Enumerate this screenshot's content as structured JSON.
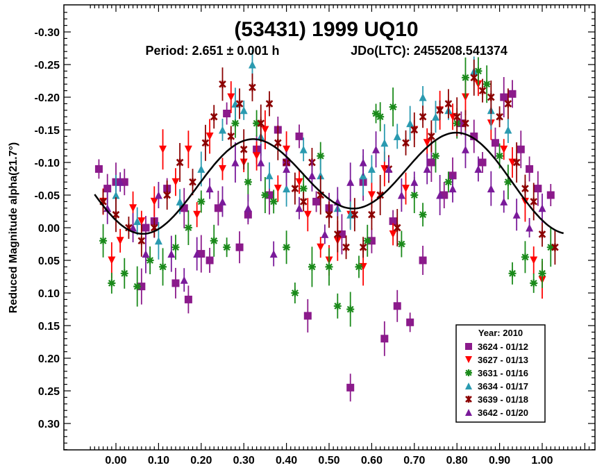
{
  "chart_data": {
    "type": "scatter",
    "title": "(53431) 1999 UQ10",
    "subtitle_period": "Period: 2.651 ± 0.001 h",
    "subtitle_epoch": "JDo(LTC): 2455208.541374",
    "xlabel": "",
    "ylabel": "Reduced Magnitude alpha(21.7°)",
    "xlim": [
      -0.06,
      1.12
    ],
    "ylim": [
      -0.33,
      0.34
    ],
    "y_inverted": true,
    "grid": false,
    "x_ticks": [
      "0.00",
      "0.10",
      "0.20",
      "0.30",
      "0.40",
      "0.50",
      "0.60",
      "0.70",
      "0.80",
      "0.90",
      "1.00"
    ],
    "y_ticks": [
      "-0.30",
      "-0.25",
      "-0.20",
      "-0.15",
      "-0.10",
      "-0.05",
      "0.00",
      "0.05",
      "0.10",
      "0.15",
      "0.20",
      "0.25",
      "0.30"
    ],
    "legend": {
      "title": "Year: 2010",
      "position": "bottom-right"
    },
    "series": [
      {
        "name": "3624 - 01/12",
        "marker": "square",
        "color": "#8B1A8B",
        "points": [
          [
            -0.04,
            -0.09
          ],
          [
            -0.02,
            -0.06
          ],
          [
            0.0,
            -0.07
          ],
          [
            0.02,
            -0.07
          ],
          [
            0.06,
            0.09
          ],
          [
            0.07,
            0.0
          ],
          [
            0.09,
            -0.01
          ],
          [
            0.12,
            -0.06
          ],
          [
            0.14,
            0.085
          ],
          [
            0.16,
            -0.03
          ],
          [
            0.17,
            0.11
          ],
          [
            0.2,
            0.04
          ],
          [
            0.22,
            0.05
          ],
          [
            0.24,
            -0.03
          ],
          [
            0.26,
            -0.175
          ],
          [
            0.29,
            0.03
          ],
          [
            0.31,
            -0.02
          ],
          [
            0.33,
            -0.12
          ],
          [
            0.36,
            -0.05
          ],
          [
            0.38,
            -0.15
          ],
          [
            0.4,
            -0.1
          ],
          [
            0.43,
            -0.14
          ],
          [
            0.45,
            0.135
          ],
          [
            0.47,
            -0.04
          ],
          [
            0.5,
            -0.03
          ],
          [
            0.53,
            0.01
          ],
          [
            0.55,
            0.245
          ],
          [
            0.58,
            -0.07
          ],
          [
            0.6,
            0.02
          ],
          [
            0.63,
            0.17
          ],
          [
            0.65,
            -0.01
          ],
          [
            0.66,
            0.12
          ],
          [
            0.69,
            0.145
          ],
          [
            0.72,
            0.05
          ],
          [
            0.74,
            -0.1
          ],
          [
            0.77,
            -0.05
          ],
          [
            0.79,
            -0.08
          ],
          [
            0.81,
            -0.16
          ],
          [
            0.84,
            -0.14
          ],
          [
            0.86,
            -0.1
          ],
          [
            0.89,
            -0.13
          ],
          [
            0.91,
            -0.2
          ],
          [
            0.93,
            -0.205
          ],
          [
            0.95,
            -0.12
          ],
          [
            0.97,
            -0.09
          ],
          [
            0.99,
            -0.06
          ],
          [
            1.02,
            -0.05
          ]
        ]
      },
      {
        "name": "3627 - 01/13",
        "marker": "triangle-down",
        "color": "#FF0000",
        "points": [
          [
            -0.03,
            -0.04
          ],
          [
            -0.01,
            0.05
          ],
          [
            0.01,
            0.02
          ],
          [
            0.04,
            -0.03
          ],
          [
            0.06,
            -0.01
          ],
          [
            0.09,
            -0.04
          ],
          [
            0.11,
            -0.12
          ],
          [
            0.14,
            -0.07
          ],
          [
            0.17,
            -0.12
          ],
          [
            0.19,
            -0.02
          ],
          [
            0.22,
            -0.14
          ],
          [
            0.25,
            -0.09
          ],
          [
            0.27,
            -0.2
          ],
          [
            0.3,
            -0.1
          ],
          [
            0.33,
            -0.11
          ],
          [
            0.35,
            -0.15
          ],
          [
            0.38,
            -0.06
          ],
          [
            0.4,
            -0.12
          ],
          [
            0.43,
            -0.07
          ],
          [
            0.45,
            -0.02
          ],
          [
            0.48,
            0.03
          ],
          [
            0.5,
            0.05
          ],
          [
            0.52,
            0.02
          ],
          [
            0.55,
            -0.02
          ],
          [
            0.58,
            0.06
          ],
          [
            0.6,
            -0.05
          ],
          [
            0.63,
            -0.09
          ],
          [
            0.65,
            0.01
          ],
          [
            0.68,
            -0.06
          ],
          [
            0.7,
            -0.15
          ],
          [
            0.73,
            -0.13
          ],
          [
            0.76,
            -0.18
          ],
          [
            0.79,
            -0.17
          ],
          [
            0.82,
            -0.2
          ],
          [
            0.85,
            -0.22
          ],
          [
            0.88,
            -0.16
          ],
          [
            0.91,
            -0.12
          ],
          [
            0.93,
            -0.1
          ],
          [
            0.96,
            -0.04
          ],
          [
            0.98,
            0.05
          ],
          [
            1.0,
            0.08
          ]
        ]
      },
      {
        "name": "3631 - 01/16",
        "marker": "asterisk",
        "color": "#1A8A1A",
        "points": [
          [
            -0.03,
            0.02
          ],
          [
            -0.01,
            0.085
          ],
          [
            0.02,
            0.07
          ],
          [
            0.05,
            0.09
          ],
          [
            0.08,
            0.05
          ],
          [
            0.11,
            0.06
          ],
          [
            0.14,
            0.03
          ],
          [
            0.17,
            0.0
          ],
          [
            0.2,
            -0.04
          ],
          [
            0.23,
            0.02
          ],
          [
            0.26,
            0.03
          ],
          [
            0.28,
            -0.16
          ],
          [
            0.31,
            -0.07
          ],
          [
            0.33,
            -0.16
          ],
          [
            0.35,
            -0.05
          ],
          [
            0.37,
            -0.04
          ],
          [
            0.4,
            0.03
          ],
          [
            0.42,
            0.1
          ],
          [
            0.44,
            -0.06
          ],
          [
            0.46,
            0.06
          ],
          [
            0.48,
            -0.11
          ],
          [
            0.5,
            0.06
          ],
          [
            0.52,
            0.12
          ],
          [
            0.55,
            0.125
          ],
          [
            0.57,
            0.06
          ],
          [
            0.59,
            0.02
          ],
          [
            0.61,
            -0.175
          ],
          [
            0.62,
            -0.17
          ],
          [
            0.65,
            -0.185
          ],
          [
            0.67,
            0.025
          ],
          [
            0.7,
            -0.05
          ],
          [
            0.72,
            -0.02
          ],
          [
            0.75,
            -0.11
          ],
          [
            0.78,
            -0.07
          ],
          [
            0.8,
            -0.16
          ],
          [
            0.82,
            -0.23
          ],
          [
            0.85,
            -0.24
          ],
          [
            0.87,
            -0.22
          ],
          [
            0.9,
            -0.11
          ],
          [
            0.92,
            -0.07
          ],
          [
            0.93,
            0.07
          ],
          [
            0.96,
            0.045
          ],
          [
            0.98,
            0.085
          ],
          [
            1.0,
            0.07
          ],
          [
            1.02,
            0.03
          ]
        ]
      },
      {
        "name": "3634 - 01/17",
        "marker": "triangle-up",
        "color": "#2A9AB0",
        "points": [
          [
            0.0,
            -0.05
          ],
          [
            0.05,
            -0.01
          ],
          [
            0.1,
            0.02
          ],
          [
            0.15,
            -0.04
          ],
          [
            0.2,
            -0.09
          ],
          [
            0.25,
            -0.15
          ],
          [
            0.28,
            -0.19
          ],
          [
            0.3,
            -0.18
          ],
          [
            0.32,
            -0.25
          ],
          [
            0.34,
            -0.14
          ],
          [
            0.36,
            -0.08
          ],
          [
            0.4,
            -0.06
          ],
          [
            0.44,
            -0.12
          ],
          [
            0.48,
            -0.08
          ],
          [
            0.52,
            -0.03
          ],
          [
            0.55,
            -0.02
          ],
          [
            0.58,
            -0.08
          ],
          [
            0.6,
            -0.09
          ],
          [
            0.63,
            -0.13
          ],
          [
            0.66,
            -0.14
          ],
          [
            0.69,
            -0.16
          ],
          [
            0.72,
            -0.2
          ],
          [
            0.75,
            -0.17
          ],
          [
            0.78,
            -0.18
          ],
          [
            0.84,
            -0.24
          ],
          [
            0.88,
            -0.18
          ],
          [
            0.92,
            -0.15
          ]
        ]
      },
      {
        "name": "3639 - 01/18",
        "marker": "star",
        "color": "#8B0000",
        "points": [
          [
            -0.03,
            -0.04
          ],
          [
            0.0,
            -0.02
          ],
          [
            0.03,
            0.0
          ],
          [
            0.06,
            0.02
          ],
          [
            0.09,
            0.0
          ],
          [
            0.12,
            -0.05
          ],
          [
            0.15,
            -0.1
          ],
          [
            0.18,
            -0.07
          ],
          [
            0.21,
            -0.13
          ],
          [
            0.23,
            -0.17
          ],
          [
            0.25,
            -0.22
          ],
          [
            0.27,
            -0.14
          ],
          [
            0.29,
            -0.19
          ],
          [
            0.3,
            -0.12
          ],
          [
            0.32,
            -0.215
          ],
          [
            0.34,
            -0.16
          ],
          [
            0.36,
            -0.19
          ],
          [
            0.38,
            -0.13
          ],
          [
            0.4,
            -0.1
          ],
          [
            0.42,
            -0.06
          ],
          [
            0.44,
            -0.04
          ],
          [
            0.46,
            -0.1
          ],
          [
            0.48,
            -0.05
          ],
          [
            0.5,
            -0.02
          ],
          [
            0.52,
            0.01
          ],
          [
            0.54,
            0.03
          ],
          [
            0.56,
            -0.02
          ],
          [
            0.58,
            0.03
          ],
          [
            0.6,
            -0.02
          ],
          [
            0.62,
            -0.05
          ],
          [
            0.64,
            -0.09
          ],
          [
            0.66,
            0.0
          ],
          [
            0.68,
            -0.13
          ],
          [
            0.7,
            -0.15
          ],
          [
            0.72,
            -0.17
          ],
          [
            0.74,
            -0.14
          ],
          [
            0.76,
            -0.18
          ],
          [
            0.78,
            -0.19
          ],
          [
            0.8,
            -0.17
          ],
          [
            0.82,
            -0.16
          ],
          [
            0.84,
            -0.23
          ],
          [
            0.86,
            -0.21
          ],
          [
            0.88,
            -0.2
          ],
          [
            0.9,
            -0.17
          ],
          [
            0.92,
            -0.19
          ],
          [
            0.94,
            -0.1
          ],
          [
            0.96,
            -0.06
          ],
          [
            0.98,
            -0.04
          ],
          [
            1.0,
            0.01
          ],
          [
            1.03,
            0.03
          ]
        ]
      },
      {
        "name": "3642 - 01/20",
        "marker": "triangle-up",
        "color": "#7A1A9A",
        "points": [
          [
            -0.02,
            -0.03
          ],
          [
            0.01,
            -0.07
          ],
          [
            0.04,
            0.0
          ],
          [
            0.07,
            0.04
          ],
          [
            0.1,
            -0.05
          ],
          [
            0.13,
            0.04
          ],
          [
            0.16,
            0.08
          ],
          [
            0.19,
            0.04
          ],
          [
            0.22,
            -0.06
          ],
          [
            0.25,
            -0.04
          ],
          [
            0.28,
            -0.1
          ],
          [
            0.31,
            -0.03
          ],
          [
            0.34,
            -0.1
          ],
          [
            0.37,
            0.04
          ],
          [
            0.4,
            -0.09
          ],
          [
            0.43,
            -0.03
          ],
          [
            0.46,
            -0.08
          ],
          [
            0.49,
            0.01
          ],
          [
            0.52,
            -0.04
          ],
          [
            0.55,
            -0.07
          ],
          [
            0.58,
            -0.1
          ],
          [
            0.61,
            -0.12
          ],
          [
            0.64,
            -0.09
          ],
          [
            0.67,
            -0.05
          ],
          [
            0.7,
            -0.07
          ],
          [
            0.73,
            -0.09
          ],
          [
            0.76,
            -0.05
          ],
          [
            0.79,
            -0.06
          ],
          [
            0.82,
            -0.12
          ],
          [
            0.85,
            -0.09
          ],
          [
            0.88,
            -0.06
          ],
          [
            0.91,
            -0.04
          ],
          [
            0.94,
            -0.02
          ],
          [
            0.97,
            0.0
          ],
          [
            1.0,
            -0.03
          ]
        ]
      }
    ]
  }
}
